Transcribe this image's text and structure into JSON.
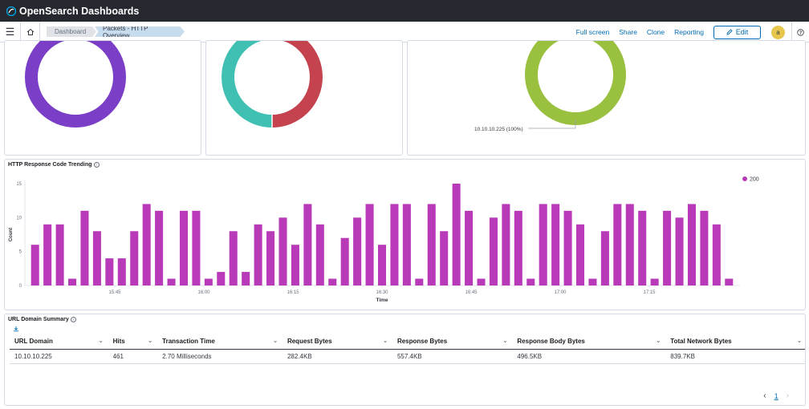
{
  "app": {
    "title": "OpenSearch Dashboards"
  },
  "breadcrumbs": [
    "Dashboard",
    "Packets - HTTP Overview"
  ],
  "actions": {
    "full_screen": "Full screen",
    "share": "Share",
    "clone": "Clone",
    "reporting": "Reporting",
    "edit": "Edit"
  },
  "user": {
    "avatar_letter": "a"
  },
  "colors": {
    "purple": "#7b3fc7",
    "teal": "#3fc0b3",
    "red": "#c5424f",
    "green": "#9ac040",
    "bar": "#b93ab9"
  },
  "donuts": [
    {
      "slices": [
        {
          "fraction": 1.0,
          "color": "#7b3fc7"
        }
      ]
    },
    {
      "slices": [
        {
          "fraction": 0.5,
          "color": "#3fc0b3"
        },
        {
          "fraction": 0.5,
          "color": "#c5424f"
        }
      ]
    },
    {
      "slices": [
        {
          "fraction": 1.0,
          "color": "#9ac040"
        }
      ],
      "label": "10.10.10.225 (100%)"
    }
  ],
  "trend_panel": {
    "title": "HTTP Response Code Trending"
  },
  "chart_data": {
    "type": "bar",
    "xlabel": "Time",
    "ylabel": "Count",
    "ylim": [
      0,
      15
    ],
    "yticks": [
      0,
      5,
      10,
      15
    ],
    "x_tick_labels": [
      "15:45",
      "16:00",
      "16:15",
      "16:30",
      "16:45",
      "17:00",
      "17:15"
    ],
    "legend": {
      "position": "top-right",
      "entries": [
        {
          "name": "200",
          "color": "#b93ab9"
        }
      ]
    },
    "series": [
      {
        "name": "200",
        "color": "#b93ab9",
        "values": [
          6,
          9,
          9,
          1,
          11,
          8,
          4,
          4,
          8,
          12,
          11,
          1,
          11,
          11,
          1,
          2,
          8,
          2,
          9,
          8,
          10,
          6,
          12,
          9,
          1,
          7,
          10,
          12,
          6,
          12,
          12,
          1,
          12,
          8,
          15,
          11,
          1,
          10,
          12,
          11,
          1,
          12,
          12,
          11,
          9,
          1,
          8,
          12,
          12,
          11,
          1,
          11,
          10,
          12,
          11,
          9,
          1
        ]
      }
    ]
  },
  "table_panel": {
    "title": "URL Domain Summary",
    "columns": [
      "URL Domain",
      "Hits",
      "Transaction Time",
      "Request Bytes",
      "Response Bytes",
      "Response Body Bytes",
      "Total Network Bytes"
    ],
    "rows": [
      [
        "10.10.10.225",
        "461",
        "2.70 Milliseconds",
        "282.4KB",
        "557.4KB",
        "496.5KB",
        "839.7KB"
      ]
    ],
    "pagination": {
      "current_page": "1"
    }
  }
}
